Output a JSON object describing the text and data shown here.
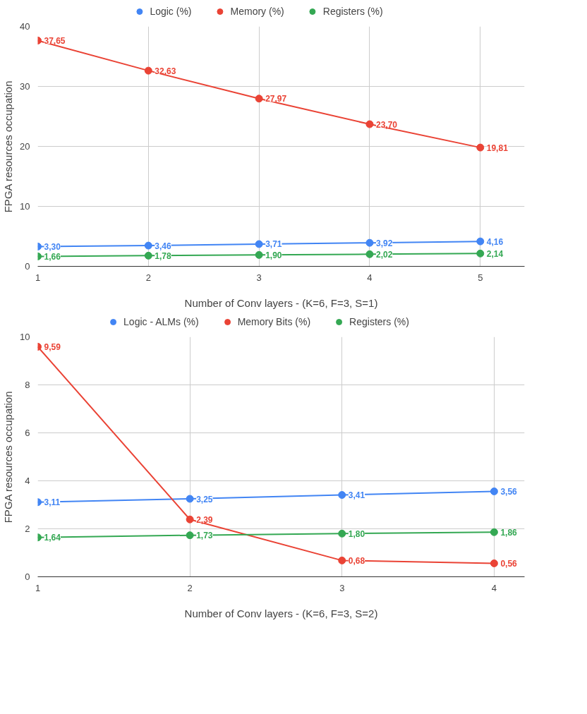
{
  "chart_data": [
    {
      "type": "line",
      "xlabel": "Number of Conv layers - (K=6, F=3, S=1)",
      "ylabel": "FPGA resources occupation",
      "x": [
        1,
        2,
        3,
        4,
        5
      ],
      "xlim": [
        1,
        5.4
      ],
      "xticks": [
        1,
        2,
        3,
        4,
        5
      ],
      "ylim": [
        0,
        40
      ],
      "yticks": [
        0,
        10,
        20,
        30,
        40
      ],
      "grid": true,
      "legend": "top",
      "marker": "circle",
      "line_style": "solid",
      "series": [
        {
          "name": "Logic (%)",
          "color": "#4285f4",
          "values": [
            3.3,
            3.46,
            3.71,
            3.92,
            4.16
          ],
          "value_labels": [
            "3,30",
            "3,46",
            "3,71",
            "3,92",
            "4,16"
          ]
        },
        {
          "name": "Memory (%)",
          "color": "#ea4335",
          "values": [
            37.65,
            32.63,
            27.97,
            23.7,
            19.81
          ],
          "value_labels": [
            "37,65",
            "32,63",
            "27,97",
            "23,70",
            "19,81"
          ]
        },
        {
          "name": "Registers (%)",
          "color": "#34a853",
          "values": [
            1.66,
            1.78,
            1.9,
            2.02,
            2.14
          ],
          "value_labels": [
            "1,66",
            "1,78",
            "1,90",
            "2,02",
            "2,14"
          ]
        }
      ]
    },
    {
      "type": "line",
      "xlabel": "Number of Conv layers - (K=6, F=3, S=2)",
      "ylabel": "FPGA resources occupation",
      "x": [
        1,
        2,
        3,
        4
      ],
      "xlim": [
        1,
        4.2
      ],
      "xticks": [
        1,
        2,
        3,
        4
      ],
      "ylim": [
        0,
        10
      ],
      "yticks": [
        0,
        2,
        4,
        6,
        8,
        10
      ],
      "grid": true,
      "legend": "top",
      "marker": "circle",
      "line_style": "solid",
      "series": [
        {
          "name": "Logic - ALMs (%)",
          "color": "#4285f4",
          "values": [
            3.11,
            3.25,
            3.41,
            3.56
          ],
          "value_labels": [
            "3,11",
            "3,25",
            "3,41",
            "3,56"
          ]
        },
        {
          "name": "Memory Bits (%)",
          "color": "#ea4335",
          "values": [
            9.59,
            2.39,
            0.68,
            0.56
          ],
          "value_labels": [
            "9,59",
            "2,39",
            "0,68",
            "0,56"
          ]
        },
        {
          "name": "Registers (%)",
          "color": "#34a853",
          "values": [
            1.64,
            1.73,
            1.8,
            1.86
          ],
          "value_labels": [
            "1,64",
            "1,73",
            "1,80",
            "1,86"
          ]
        }
      ]
    }
  ]
}
